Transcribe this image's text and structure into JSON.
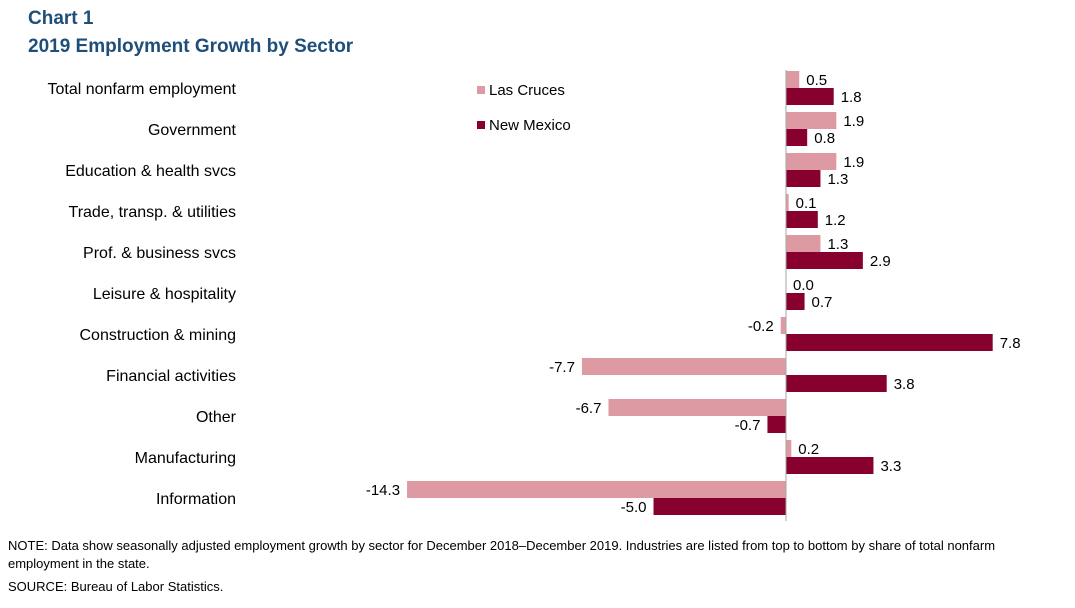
{
  "header": {
    "chart_label": "Chart 1",
    "title": "2019 Employment  Growth by Sector"
  },
  "footer": {
    "note": "NOTE: Data show seasonally adjusted employment growth by sector for December 2018–December 2019. Industries are listed from top to bottom by share of total nonfarm employment in the state.",
    "source": "SOURCE:  Bureau of Labor Statistics."
  },
  "chart_data": {
    "type": "bar",
    "orientation": "horizontal",
    "title": "2019 Employment  Growth by Sector",
    "categories": [
      "Total nonfarm employment",
      "Government",
      "Education & health svcs",
      "Trade, transp. & utilities",
      "Prof. & business svcs",
      "Leisure & hospitality",
      "Construction & mining",
      "Financial activities",
      "Other",
      "Manufacturing",
      "Information"
    ],
    "series": [
      {
        "name": "Las Cruces",
        "color": "#de9aa3",
        "values": [
          0.5,
          1.9,
          1.9,
          0.1,
          1.3,
          0.0,
          -0.2,
          -7.7,
          -6.7,
          0.2,
          -14.3
        ]
      },
      {
        "name": "New Mexico",
        "color": "#87002e",
        "values": [
          1.8,
          0.8,
          1.3,
          1.2,
          2.9,
          0.7,
          7.8,
          3.8,
          -0.7,
          3.3,
          -5.0
        ]
      }
    ],
    "data_labels": true,
    "legend_position": "top-center",
    "grid": false
  }
}
